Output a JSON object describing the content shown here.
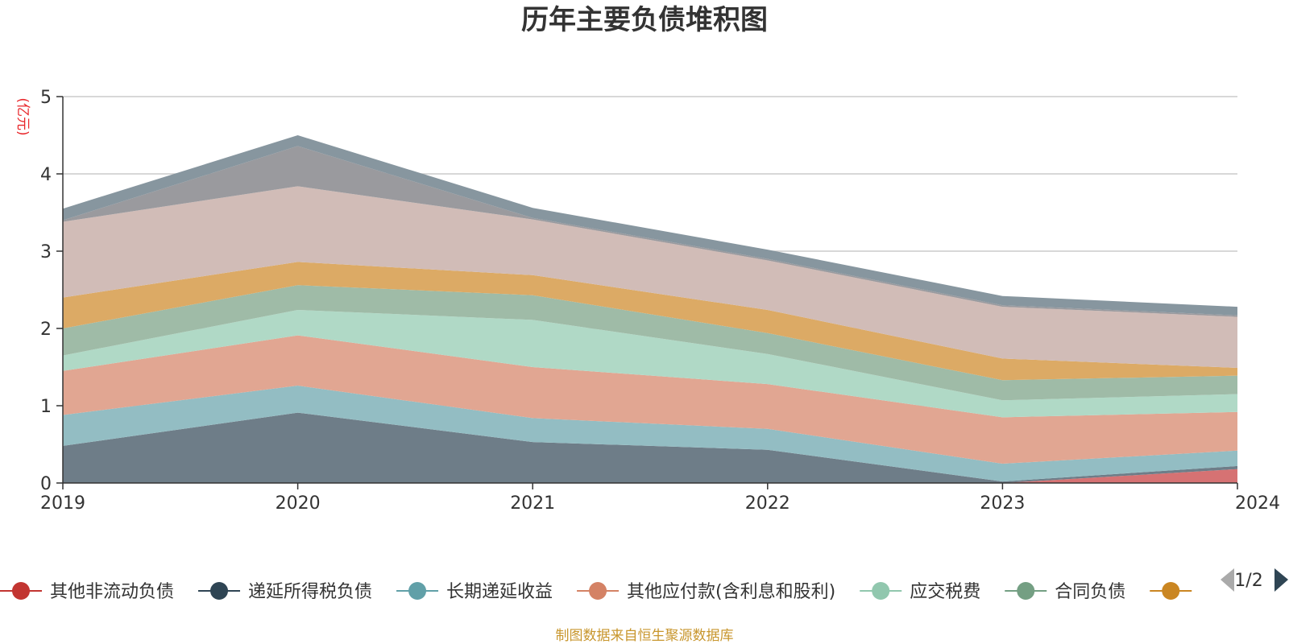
{
  "chart_data": {
    "type": "area",
    "stacked": true,
    "title": "历年主要负债堆积图",
    "unit_label": "(亿元)",
    "x": [
      "2019",
      "2020",
      "2021",
      "2022",
      "2023",
      "2024"
    ],
    "ylim": [
      0,
      5
    ],
    "yticks": [
      "0",
      "1",
      "2",
      "3",
      "4",
      "5"
    ],
    "grid": true,
    "series": [
      {
        "name": "其他非流动负债",
        "color": "#c23531",
        "fill": "#d67273",
        "values": [
          0,
          0,
          0,
          0,
          0,
          0.18
        ]
      },
      {
        "name": "递延所得税负债",
        "color": "#2f4554",
        "fill": "#6e7d88",
        "values": [
          0.48,
          0.91,
          0.53,
          0.43,
          0.02,
          0.04
        ]
      },
      {
        "name": "长期递延收益",
        "color": "#61a0a8",
        "fill": "#93bdc3",
        "values": [
          0.4,
          0.35,
          0.31,
          0.27,
          0.23,
          0.2
        ]
      },
      {
        "name": "其他应付款(含利息和股利)",
        "color": "#d48265",
        "fill": "#e1a692",
        "values": [
          0.57,
          0.65,
          0.66,
          0.58,
          0.6,
          0.5
        ]
      },
      {
        "name": "应交税费",
        "color": "#91c7ae",
        "fill": "#b0d9c6",
        "values": [
          0.2,
          0.33,
          0.61,
          0.39,
          0.22,
          0.23
        ]
      },
      {
        "name": "合同负债",
        "color": "#749f83",
        "fill": "#9fbba7",
        "values": [
          0.35,
          0.32,
          0.32,
          0.27,
          0.26,
          0.24
        ]
      },
      {
        "name": "",
        "color": "#ca8622",
        "fill": "#dcaa65",
        "values": [
          0.4,
          0.3,
          0.26,
          0.3,
          0.28,
          0.1
        ]
      },
      {
        "name": "",
        "color": "#bda29a",
        "fill": "#d1bcb7",
        "values": [
          0.98,
          0.98,
          0.72,
          0.64,
          0.67,
          0.66
        ]
      },
      {
        "name": "",
        "color": "#6e7074",
        "fill": "#9a9a9e",
        "values": [
          0.02,
          0.52,
          0.02,
          0.02,
          0.02,
          0.02
        ]
      },
      {
        "name": "",
        "color": "#546570",
        "fill": "#87969f",
        "values": [
          0.15,
          0.14,
          0.13,
          0.12,
          0.12,
          0.11
        ]
      }
    ],
    "legend": {
      "placement": "bottom",
      "page": "1/2",
      "visible_items": 7
    }
  },
  "source_text": "制图数据来自恒生聚源数据库"
}
